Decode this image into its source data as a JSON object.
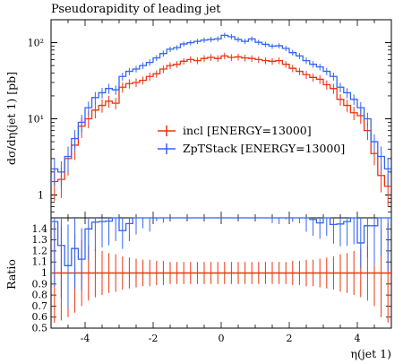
{
  "chart_data": [
    {
      "type": "line",
      "title": "Pseudorapidity of leading jet",
      "xlabel": "",
      "ylabel": "dσ/dη(jet 1) [pb]",
      "yscale": "log",
      "xlim": [
        -5,
        5
      ],
      "ylim": [
        0.5,
        200
      ],
      "yticks": [
        {
          "value": 1,
          "label": "1"
        },
        {
          "value": 10,
          "label": "10¹"
        },
        {
          "value": 100,
          "label": "10²"
        }
      ],
      "legend_position": "center-right",
      "x_edges": [
        -5,
        -4.8,
        -4.6,
        -4.4,
        -4.2,
        -4,
        -3.8,
        -3.6,
        -3.4,
        -3.2,
        -3,
        -2.8,
        -2.6,
        -2.4,
        -2.2,
        -2,
        -1.8,
        -1.6,
        -1.4,
        -1.2,
        -1,
        -0.8,
        -0.6,
        -0.4,
        -0.2,
        0,
        0.2,
        0.4,
        0.6,
        0.8,
        1,
        1.2,
        1.4,
        1.6,
        1.8,
        2,
        2.2,
        2.4,
        2.6,
        2.8,
        3,
        3.2,
        3.4,
        3.6,
        3.8,
        4,
        4.2,
        4.4,
        4.6,
        4.8,
        5
      ],
      "series": [
        {
          "name": "incl [ENERGY=13000]",
          "color": "#ee3311",
          "values": [
            1.5,
            1.6,
            3.0,
            4.5,
            8.0,
            10.0,
            13.0,
            15.0,
            17.0,
            16.0,
            26.0,
            29.0,
            30.0,
            32.0,
            36.0,
            39.0,
            45.0,
            50.0,
            52.0,
            57.0,
            60.0,
            58.0,
            62.0,
            64.0,
            62.0,
            67.0,
            64.0,
            65.0,
            63.0,
            62.0,
            60.0,
            58.0,
            57.0,
            58.0,
            52.0,
            46.0,
            42.0,
            38.0,
            35.0,
            33.0,
            28.0,
            25.0,
            18.0,
            15.0,
            12.0,
            11.0,
            7.0,
            3.5,
            1.8,
            1.3
          ],
          "errors_rel": [
            0.45,
            0.43,
            0.4,
            0.36,
            0.3,
            0.25,
            0.22,
            0.2,
            0.18,
            0.17,
            0.15,
            0.14,
            0.13,
            0.12,
            0.12,
            0.11,
            0.11,
            0.1,
            0.1,
            0.1,
            0.1,
            0.1,
            0.1,
            0.1,
            0.1,
            0.1,
            0.1,
            0.1,
            0.1,
            0.1,
            0.1,
            0.1,
            0.1,
            0.1,
            0.1,
            0.11,
            0.11,
            0.12,
            0.12,
            0.13,
            0.14,
            0.15,
            0.17,
            0.18,
            0.2,
            0.22,
            0.25,
            0.3,
            0.4,
            0.45
          ]
        },
        {
          "name": "ZpTStack [ENERGY=13000]",
          "color": "#3366ee",
          "values": [
            2.2,
            2.0,
            3.2,
            5.5,
            9.0,
            14.0,
            19.0,
            22.0,
            25.0,
            24.0,
            36.0,
            42.0,
            45.0,
            50.0,
            55.0,
            63.0,
            72.0,
            82.0,
            86.0,
            96.0,
            100.0,
            104.0,
            108.0,
            110.0,
            112.0,
            125.0,
            120.0,
            110.0,
            104.0,
            112.0,
            101.0,
            95.0,
            90.0,
            91.0,
            84.0,
            74.0,
            67.0,
            58.0,
            52.0,
            48.0,
            42.0,
            36.0,
            26.0,
            22.0,
            18.0,
            14.0,
            10.0,
            5.0,
            3.2,
            2.2
          ],
          "errors_rel": [
            0.4,
            0.38,
            0.35,
            0.3,
            0.25,
            0.2,
            0.18,
            0.16,
            0.15,
            0.14,
            0.12,
            0.11,
            0.1,
            0.1,
            0.1,
            0.09,
            0.09,
            0.08,
            0.08,
            0.08,
            0.08,
            0.08,
            0.08,
            0.08,
            0.08,
            0.08,
            0.08,
            0.08,
            0.08,
            0.08,
            0.08,
            0.08,
            0.08,
            0.08,
            0.08,
            0.09,
            0.09,
            0.1,
            0.1,
            0.1,
            0.11,
            0.12,
            0.14,
            0.15,
            0.16,
            0.18,
            0.2,
            0.25,
            0.35,
            0.4
          ]
        }
      ]
    },
    {
      "type": "line",
      "title": "",
      "xlabel": "η(jet 1)",
      "ylabel": "Ratio",
      "xlim": [
        -5,
        5
      ],
      "ylim": [
        0.5,
        1.5
      ],
      "xticks": [
        -4,
        -2,
        0,
        2,
        4
      ],
      "yticks": [
        0.5,
        0.6,
        0.7,
        0.8,
        0.9,
        1,
        1.1,
        1.2,
        1.3,
        1.4
      ],
      "reference_line": 1.0,
      "note": "ZpTStack/incl ratio mostly above 1.5 (off-scale); visible only in outer bins"
    }
  ]
}
